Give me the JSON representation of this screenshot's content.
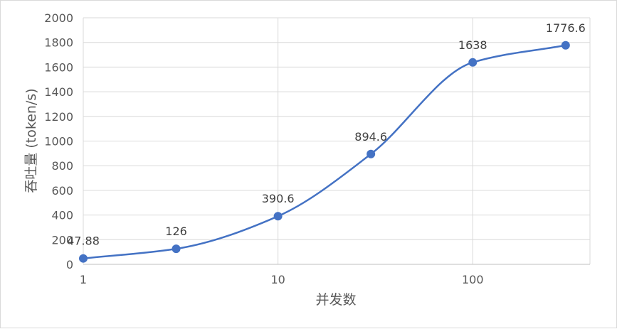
{
  "chart_data": {
    "type": "line",
    "xlabel": "并发数",
    "ylabel": "吞吐量 (token/s)",
    "x_scale": "log10",
    "xlim": [
      1,
      400
    ],
    "ylim": [
      0,
      2000
    ],
    "x_ticks": [
      {
        "value": 1,
        "label": "1"
      },
      {
        "value": 10,
        "label": "10"
      },
      {
        "value": 100,
        "label": "100"
      }
    ],
    "y_ticks": [
      {
        "value": 0,
        "label": "0"
      },
      {
        "value": 200,
        "label": "200"
      },
      {
        "value": 400,
        "label": "400"
      },
      {
        "value": 600,
        "label": "600"
      },
      {
        "value": 800,
        "label": "800"
      },
      {
        "value": 1000,
        "label": "1000"
      },
      {
        "value": 1200,
        "label": "1200"
      },
      {
        "value": 1400,
        "label": "1400"
      },
      {
        "value": 1600,
        "label": "1600"
      },
      {
        "value": 1800,
        "label": "1800"
      },
      {
        "value": 2000,
        "label": "2000"
      }
    ],
    "grid": true,
    "legend": "none",
    "series": [
      {
        "color": "#4472c4",
        "smooth": true,
        "points": [
          {
            "x": 1,
            "y": 47.88,
            "label": "47.88"
          },
          {
            "x": 3,
            "y": 126,
            "label": "126"
          },
          {
            "x": 10,
            "y": 390.6,
            "label": "390.6"
          },
          {
            "x": 30,
            "y": 894.6,
            "label": "894.6"
          },
          {
            "x": 100,
            "y": 1638,
            "label": "1638"
          },
          {
            "x": 300,
            "y": 1776.6,
            "label": "1776.6"
          }
        ]
      }
    ]
  }
}
